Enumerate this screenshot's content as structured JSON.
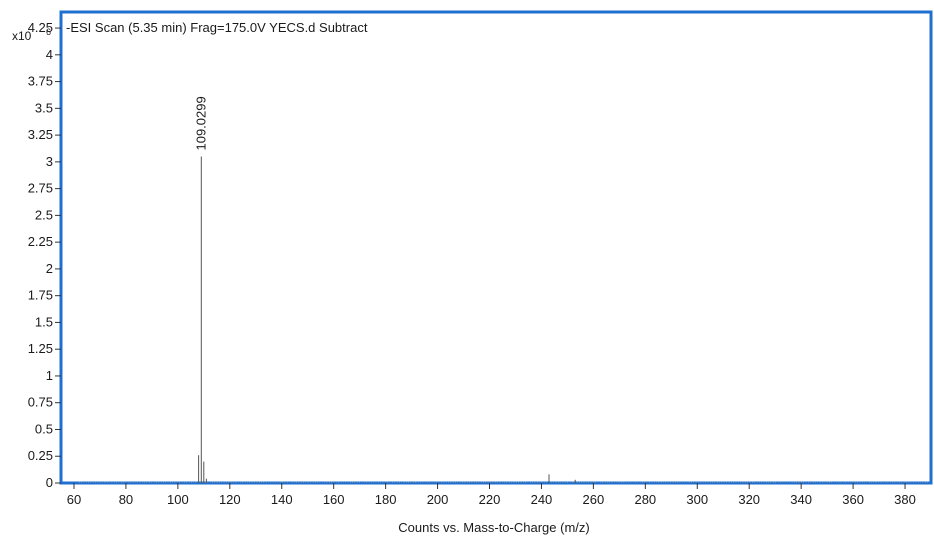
{
  "chart_data": {
    "type": "bar",
    "title": "-ESI Scan (5.35 min) Frag=175.0V YECS.d  Subtract",
    "xlabel": "Counts vs. Mass-to-Charge (m/z)",
    "ylabel": "",
    "y_multiplier_label": "x10",
    "y_multiplier_exponent": "6",
    "xlim": [
      55,
      390
    ],
    "ylim": [
      0,
      4.4
    ],
    "x_ticks": [
      60,
      80,
      100,
      120,
      140,
      160,
      180,
      200,
      220,
      240,
      260,
      280,
      300,
      320,
      340,
      360,
      380
    ],
    "y_ticks": [
      0,
      0.25,
      0.5,
      0.75,
      1,
      1.25,
      1.5,
      1.75,
      2,
      2.25,
      2.5,
      2.75,
      3,
      3.25,
      3.5,
      3.75,
      4,
      4.25
    ],
    "y_tick_labels": [
      "0",
      "0.25",
      "0.5",
      "0.75",
      "1",
      "1.25",
      "1.5",
      "1.75",
      "2",
      "2.25",
      "2.5",
      "2.75",
      "3",
      "3.25",
      "3.5",
      "3.75",
      "4",
      "4.25"
    ],
    "grid": false,
    "peaks": [
      {
        "mz": 108.0,
        "intensity": 0.26
      },
      {
        "mz": 109.0299,
        "intensity": 3.05
      },
      {
        "mz": 110.0,
        "intensity": 0.2
      },
      {
        "mz": 111.0,
        "intensity": 0.04
      },
      {
        "mz": 242.9,
        "intensity": 0.08
      },
      {
        "mz": 253.0,
        "intensity": 0.03
      }
    ],
    "peak_labels": [
      {
        "mz": 109.0299,
        "intensity": 3.05,
        "text": "109.0299"
      }
    ],
    "colors": {
      "frame": "#1f6fd1",
      "peak": "#555555",
      "axis": "#333333",
      "text": "#1a1a1a"
    }
  }
}
